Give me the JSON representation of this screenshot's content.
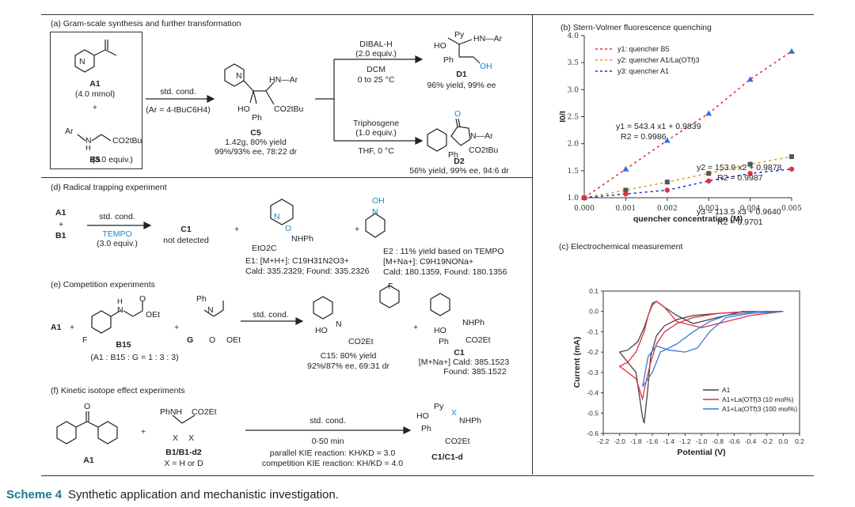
{
  "panel_a": {
    "title": "(a) Gram-scale synthesis and further transformation",
    "a1": "A1",
    "a1_amount": "(4.0 mmol)",
    "plus": "+",
    "ar": "Ar",
    "nh": "N",
    "h": "H",
    "ester": "CO2tBu",
    "b5": "B5",
    "b5_amount": "(3.0 equiv.)",
    "arrow_top": "std. cond.",
    "arrow_bottom": "(Ar = 4-tBuC6H4)",
    "c5": "C5",
    "c5_yield": "1.42g, 80% yield",
    "c5_ee": "99%/93% ee, 78:22 dr",
    "c5_hn_ar": "HN—Ar",
    "c5_ho": "HO",
    "c5_ph": "Ph",
    "c5_co2tbu": "CO2tBu",
    "c5_n": "N",
    "r1_reagent": "DIBAL-H",
    "r1_equiv": "(2.0 equiv.)",
    "r1_solvent": "DCM",
    "r1_temp": "0 to 25 °C",
    "d1": "D1",
    "d1_yield": "96% yield, 99% ee",
    "d1_py": "Py",
    "d1_hn_ar": "HN—Ar",
    "d1_ho": "HO",
    "d1_ph": "Ph",
    "d1_oh": "OH",
    "r2_reagent": "Triphosgene",
    "r2_equiv": "(1.0 equiv.)",
    "r2_cond": "THF, 0 °C",
    "d2": "D2",
    "d2_yield": "56% yield, 99% ee, 94:6 dr",
    "d2_o": "O",
    "d2_n_ar": "N—Ar",
    "d2_ph": "Ph",
    "d2_co2tbu": "CO2tBu"
  },
  "panel_d": {
    "title": "(d) Radical trapping experiment",
    "a1": "A1",
    "plus": "+",
    "b1": "B1",
    "arrow_top": "std. cond.",
    "arrow_tempo": "TEMPO",
    "arrow_equiv": "(3.0 equiv.)",
    "c1": "C1",
    "c1_note": "not detected",
    "e1_label": "E1: [M+H+]: C19H31N2O3+",
    "e1_found": "Cald: 335.2329; Found: 335.2326",
    "e1_nhph": "NHPh",
    "e1_eto": "EtO2C",
    "e1_n": "N",
    "e1_o": "O",
    "e2_label": "E2 : 11% yield based on TEMPO",
    "e2_ion": "[M+Na+]: C9H19NONa+",
    "e2_found": "Cald: 180.1359, Found: 180.1356",
    "e2_oh": "OH",
    "e2_n": "N"
  },
  "panel_e": {
    "title": "(e) Competition experiments",
    "a1": "A1",
    "plus": "+",
    "b15": "B15",
    "g": "G",
    "ratio": "(A1 : B15 : G = 1 : 3 : 3)",
    "arrow_top": "std. cond.",
    "c15": "C15: 80% yield",
    "c15_ee": "92%/87% ee, 69:31 dr",
    "c1": "C1",
    "c1_ms": "[M+Na+] Cald: 385.1523",
    "c1_found": "Found: 385.1522",
    "f": "F",
    "hn": "N",
    "h": "H",
    "oet": "OEt",
    "o": "O",
    "ph_n": "Ph",
    "co2et": "CO2Et",
    "ho": "HO",
    "nhph": "NHPh",
    "ph": "Ph"
  },
  "panel_f": {
    "title": "(f) Kinetic isotope effect experiments",
    "a1": "A1",
    "plus": "+",
    "b1": "B1/B1-d2",
    "xdef": "X = H or D",
    "arrow_top": "std. cond.",
    "arrow_time": "0-50 min",
    "kie1": "parallel KIE reaction: KH/KD = 3.0",
    "kie2": "competition KIE reaction: KH/KD = 4.0",
    "product": "C1/C1-d",
    "phnh": "PhNH",
    "co2et": "CO2Et",
    "x": "X",
    "o": "O",
    "py": "Py",
    "ho": "HO",
    "ph": "Ph",
    "nhph": "NHPh"
  },
  "panel_b": {
    "title": "(b) Stern-Volmer fluorescence quenching",
    "eq1": "y1 = 543.4 x1 + 0.9839",
    "r1": "R2 = 0.9986",
    "eq2": "y2 = 153.9 x2 + 0.9878",
    "r2": "R2 = 0.9987",
    "eq3": "y3 = 113.5 x3 + 0.9640",
    "r3": "R2 = 0.9701"
  },
  "panel_c": {
    "title": "(c) Electrochemical measurement"
  },
  "caption": {
    "label": "Scheme 4",
    "text": "Synthetic application and mechanistic investigation."
  },
  "chart_data": [
    {
      "type": "scatter",
      "title": "",
      "xlabel": "quencher concentration (M)",
      "ylabel": "I0/I",
      "xlim": [
        0,
        0.005
      ],
      "ylim": [
        1.0,
        4.0
      ],
      "xticks": [
        "0.000",
        "0.001",
        "0.002",
        "0.003",
        "0.004",
        "0.005"
      ],
      "yticks": [
        "1.0",
        "1.5",
        "2.0",
        "2.5",
        "3.0",
        "3.5",
        "4.0"
      ],
      "legend_position": "top-left",
      "series": [
        {
          "name": "y1: quencher B5",
          "color": "#e0323c",
          "marker_color": "#3a6fd8",
          "marker": "triangle",
          "x": [
            0,
            0.001,
            0.002,
            0.003,
            0.004,
            0.005
          ],
          "y": [
            1.0,
            1.53,
            2.06,
            2.56,
            3.19,
            3.71
          ]
        },
        {
          "name": "y2: quencher A1/La(OTf)3",
          "color": "#e89a2a",
          "marker_color": "#555555",
          "marker": "square",
          "x": [
            0,
            0.001,
            0.002,
            0.003,
            0.004,
            0.005
          ],
          "y": [
            1.0,
            1.14,
            1.29,
            1.45,
            1.62,
            1.76
          ]
        },
        {
          "name": "y3: quencher A1",
          "color": "#2a2ad0",
          "marker_color": "#e0323c",
          "marker": "circle",
          "x": [
            0,
            0.001,
            0.002,
            0.003,
            0.004,
            0.005
          ],
          "y": [
            1.0,
            1.07,
            1.14,
            1.31,
            1.45,
            1.53
          ]
        }
      ]
    },
    {
      "type": "line",
      "title": "",
      "xlabel": "Potential (V)",
      "ylabel": "Current (mA)",
      "xlim": [
        -2.2,
        0.2
      ],
      "ylim": [
        -0.6,
        0.1
      ],
      "xticks": [
        "-2.2",
        "-2.0",
        "-1.8",
        "-1.6",
        "-1.4",
        "-1.2",
        "-1.0",
        "-0.8",
        "-0.6",
        "-0.4",
        "-0.2",
        "0.0",
        "0.2"
      ],
      "yticks": [
        "0.1",
        "0.0",
        "-0.1",
        "-0.2",
        "-0.3",
        "-0.4",
        "-0.5",
        "-0.6"
      ],
      "legend_position": "bottom-right",
      "series": [
        {
          "name": "A1",
          "color": "#444444",
          "x": [
            0.0,
            -0.4,
            -0.8,
            -1.1,
            -1.3,
            -1.45,
            -1.55,
            -1.62,
            -1.66,
            -1.7,
            -1.72,
            -1.8,
            -2.0,
            -1.9,
            -1.78,
            -1.7,
            -1.65,
            -1.6,
            -1.55,
            -1.45,
            -1.3,
            -1.1,
            -0.8,
            -0.5,
            0.0
          ],
          "y": [
            0.0,
            0.0,
            -0.01,
            -0.02,
            -0.04,
            -0.07,
            -0.12,
            -0.22,
            -0.4,
            -0.55,
            -0.52,
            -0.3,
            -0.2,
            -0.19,
            -0.15,
            -0.08,
            -0.02,
            0.04,
            0.05,
            0.02,
            -0.02,
            -0.06,
            -0.03,
            0.0,
            0.0
          ]
        },
        {
          "name": "A1+La(OTf)3 (10 mol%)",
          "color": "#e0323c",
          "x": [
            0.0,
            -0.4,
            -0.8,
            -1.1,
            -1.3,
            -1.45,
            -1.55,
            -1.62,
            -1.68,
            -1.72,
            -1.8,
            -2.0,
            -1.9,
            -1.8,
            -1.7,
            -1.65,
            -1.6,
            -1.55,
            -1.45,
            -1.3,
            -1.0,
            -0.7,
            -0.4,
            0.0
          ],
          "y": [
            0.0,
            0.0,
            -0.01,
            -0.03,
            -0.06,
            -0.1,
            -0.16,
            -0.25,
            -0.35,
            -0.43,
            -0.33,
            -0.27,
            -0.25,
            -0.2,
            -0.1,
            -0.02,
            0.03,
            0.05,
            0.02,
            -0.05,
            -0.08,
            -0.05,
            -0.02,
            0.0
          ]
        },
        {
          "name": "A1+La(OTf)3 (100 mol%)",
          "color": "#3a78d8",
          "x": [
            0.0,
            -0.4,
            -0.7,
            -0.9,
            -1.05,
            -1.2,
            -1.4,
            -1.55,
            -1.65,
            -1.72,
            -1.6,
            -1.5,
            -1.3,
            -1.1,
            -0.9,
            -0.7,
            -0.5,
            -0.3,
            0.0
          ],
          "y": [
            0.0,
            -0.01,
            -0.03,
            -0.1,
            -0.18,
            -0.2,
            -0.19,
            -0.17,
            -0.22,
            -0.37,
            -0.3,
            -0.2,
            -0.16,
            -0.1,
            -0.05,
            -0.02,
            -0.01,
            0.0,
            0.0
          ]
        }
      ]
    }
  ]
}
